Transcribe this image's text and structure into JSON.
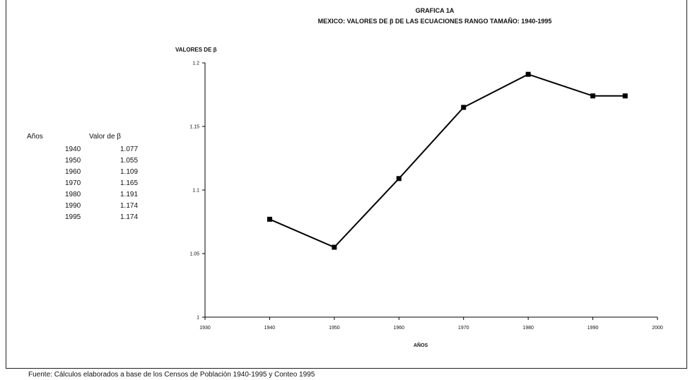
{
  "chart_data": {
    "type": "line",
    "title": "GRAFICA 1A",
    "subtitle": "MEXICO: VALORES DE β DE LAS ECUACIONES RANGO TAMAÑO: 1940-1995",
    "ylabel": "VALORES DE β",
    "xlabel": "AÑOS",
    "xlim": [
      1930,
      2000
    ],
    "ylim": [
      1,
      1.2
    ],
    "xticks": [
      "1930",
      "1940",
      "1950",
      "1960",
      "1970",
      "1980",
      "1990",
      "2000"
    ],
    "yticks": [
      "1",
      "1.05",
      "1.1",
      "1.15",
      "1.2"
    ],
    "grid": false,
    "series": [
      {
        "x": [
          1940,
          1950,
          1960,
          1970,
          1980,
          1990,
          1995
        ],
        "values": [
          1.077,
          1.055,
          1.109,
          1.165,
          1.191,
          1.174,
          1.174
        ]
      }
    ]
  },
  "table": {
    "col_year": "Años",
    "col_value": "Valor de β",
    "rows": [
      {
        "year": "1940",
        "value": "1.077"
      },
      {
        "year": "1950",
        "value": "1.055"
      },
      {
        "year": "1960",
        "value": "1.109"
      },
      {
        "year": "1970",
        "value": "1.165"
      },
      {
        "year": "1980",
        "value": "1.191"
      },
      {
        "year": "1990",
        "value": "1.174"
      },
      {
        "year": "1995",
        "value": "1.174"
      }
    ]
  },
  "source": "Fuente: Cálculos elaborados a base de los Censos de Población 1940-1995 y Conteo 1995",
  "colors": {
    "line": "#000000",
    "axis": "#000000"
  }
}
